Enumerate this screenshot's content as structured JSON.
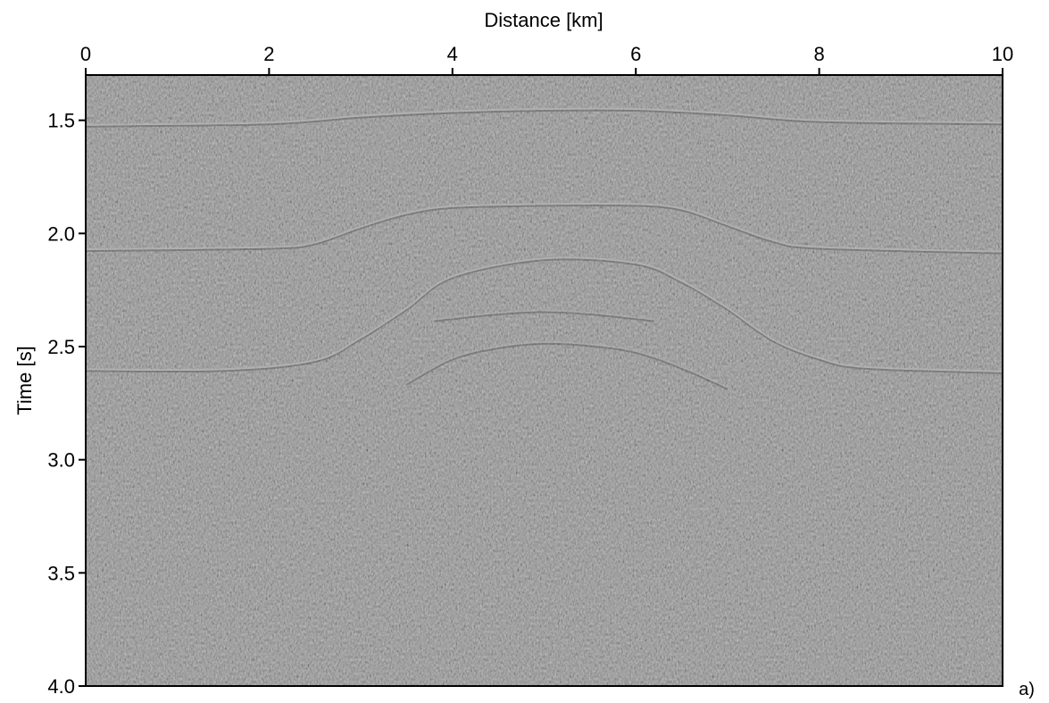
{
  "chart_data": {
    "type": "heatmap",
    "title": "",
    "xlabel": "Distance [km]",
    "ylabel": "Time [s]",
    "xlim": [
      0,
      10
    ],
    "ylim": [
      1.3,
      4.0
    ],
    "y_inverted": true,
    "x_axis_position": "top",
    "x_ticks": [
      0,
      2,
      4,
      6,
      8,
      10
    ],
    "x_tick_labels": [
      "0",
      "2",
      "4",
      "6",
      "8",
      "10"
    ],
    "y_ticks": [
      1.5,
      2.0,
      2.5,
      3.0,
      3.5,
      4.0
    ],
    "y_tick_labels": [
      "1.5",
      "2.0",
      "2.5",
      "3.0",
      "3.5",
      "4.0"
    ],
    "colormap": "gray",
    "background_color": "#808080",
    "reflector_color": "#b4b4b4",
    "panel_label": "a)",
    "reflectors": [
      {
        "x": [
          0,
          2,
          3,
          4,
          5,
          6,
          7,
          8,
          10
        ],
        "t": [
          1.52,
          1.51,
          1.48,
          1.46,
          1.45,
          1.45,
          1.47,
          1.5,
          1.51
        ]
      },
      {
        "x": [
          0,
          2,
          2.5,
          3,
          3.5,
          4,
          5,
          6,
          6.5,
          7,
          7.5,
          8,
          10
        ],
        "t": [
          2.07,
          2.06,
          2.04,
          1.97,
          1.91,
          1.88,
          1.87,
          1.87,
          1.89,
          1.96,
          2.03,
          2.06,
          2.08
        ]
      },
      {
        "x": [
          0,
          1.5,
          2.5,
          3,
          3.5,
          4,
          5,
          6,
          6.5,
          7,
          7.5,
          8,
          8.5,
          10
        ],
        "t": [
          2.6,
          2.6,
          2.56,
          2.46,
          2.33,
          2.19,
          2.11,
          2.13,
          2.21,
          2.33,
          2.47,
          2.55,
          2.59,
          2.61
        ]
      },
      {
        "x": [
          3.5,
          4,
          4.5,
          5,
          5.5,
          6,
          6.5,
          7
        ],
        "t": [
          2.66,
          2.55,
          2.5,
          2.48,
          2.49,
          2.52,
          2.59,
          2.68
        ]
      },
      {
        "x": [
          3.8,
          4.5,
          5,
          5.5,
          6.2
        ],
        "t": [
          2.38,
          2.35,
          2.34,
          2.35,
          2.38
        ]
      }
    ]
  }
}
